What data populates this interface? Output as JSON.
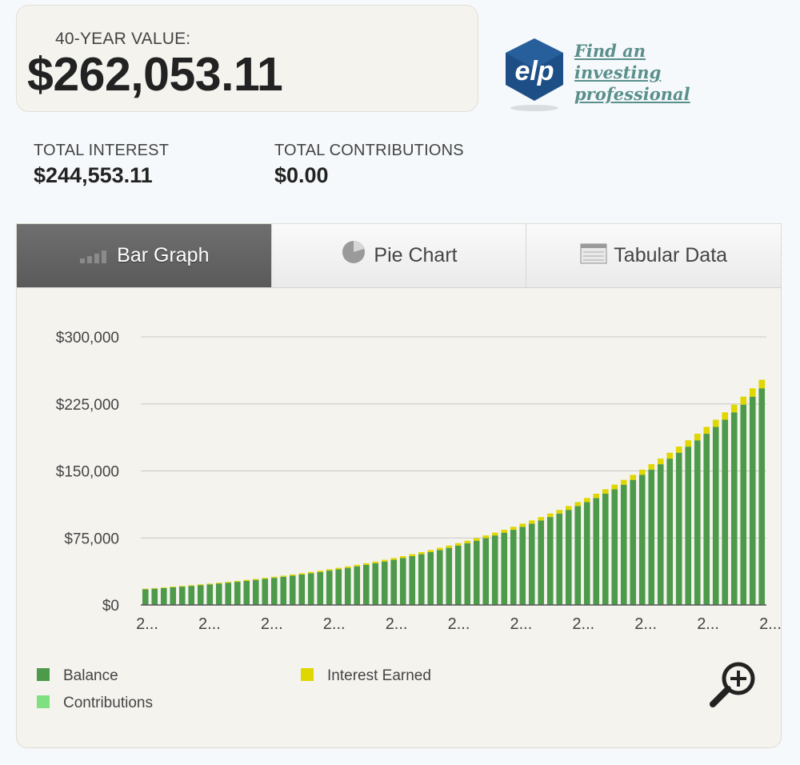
{
  "summary": {
    "value_label": "40-YEAR VALUE:",
    "value_amount": "$262,053.11",
    "total_interest_label": "TOTAL INTEREST",
    "total_interest_value": "$244,553.11",
    "total_contributions_label": "TOTAL CONTRIBUTIONS",
    "total_contributions_value": "$0.00"
  },
  "elp": {
    "logo_text": "elp",
    "link_lines": [
      "Find an",
      "investing",
      "professional"
    ]
  },
  "tabs": [
    {
      "label": "Bar Graph",
      "icon": "bar-chart-icon",
      "active": true
    },
    {
      "label": "Pie Chart",
      "icon": "pie-chart-icon",
      "active": false
    },
    {
      "label": "Tabular Data",
      "icon": "table-icon",
      "active": false
    }
  ],
  "colors": {
    "balance": "#4c9a4a",
    "interest": "#e0d700",
    "contributions": "#7fe07f",
    "gridline": "#c8c8c8"
  },
  "chart_data": {
    "type": "bar",
    "stacked": true,
    "ylim": [
      0,
      300000
    ],
    "y_ticks": [
      "$0",
      "$75,000",
      "$150,000",
      "$225,000",
      "$300,000"
    ],
    "y_tick_values": [
      0,
      75000,
      150000,
      225000,
      300000
    ],
    "x_tick_labels": [
      "2...",
      "2...",
      "2...",
      "2...",
      "2...",
      "2...",
      "2...",
      "2...",
      "2...",
      "2...",
      "2..."
    ],
    "grid": true,
    "legend_placement": "bottom",
    "series": [
      {
        "name": "Balance",
        "values": [
          17500,
          18200,
          18900,
          19700,
          20500,
          21300,
          22200,
          23000,
          24000,
          24900,
          25900,
          27000,
          28000,
          29200,
          30300,
          31500,
          32800,
          34100,
          35500,
          36900,
          38400,
          39900,
          41500,
          43200,
          44900,
          46700,
          48600,
          50500,
          52500,
          54600,
          56800,
          59100,
          61500,
          63900,
          66500,
          69100,
          71900,
          74800,
          77800,
          80900,
          84100,
          87500,
          91000,
          94600,
          98400,
          102300,
          106400,
          110700,
          115100,
          119700,
          124500,
          129500,
          134600,
          140000,
          145600,
          151500,
          157500,
          163800,
          170400,
          177200,
          184300,
          191600,
          199300,
          207300,
          215600,
          224200,
          233100,
          242500
        ]
      },
      {
        "name": "Interest Earned",
        "values": [
          700,
          700,
          760,
          790,
          820,
          850,
          890,
          920,
          960,
          1000,
          1040,
          1080,
          1120,
          1170,
          1210,
          1260,
          1310,
          1360,
          1420,
          1480,
          1540,
          1600,
          1660,
          1730,
          1800,
          1870,
          1940,
          2020,
          2100,
          2180,
          2270,
          2360,
          2460,
          2560,
          2660,
          2760,
          2880,
          2990,
          3110,
          3240,
          3370,
          3500,
          3640,
          3780,
          3940,
          4090,
          4260,
          4430,
          4600,
          4790,
          4980,
          5180,
          5390,
          5600,
          5820,
          6060,
          6300,
          6550,
          6820,
          7090,
          7370,
          7670,
          7970,
          8290,
          8630,
          8970,
          9330,
          9550
        ]
      },
      {
        "name": "Contributions",
        "values": []
      }
    ]
  },
  "legend": {
    "balance": "Balance",
    "interest": "Interest Earned",
    "contributions": "Contributions"
  }
}
